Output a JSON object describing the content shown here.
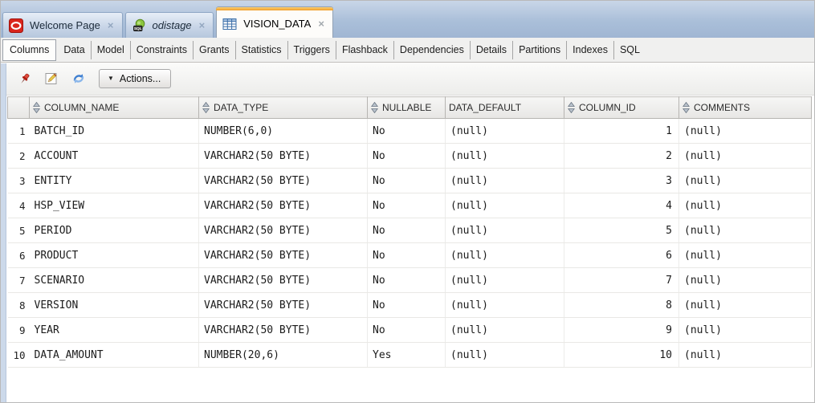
{
  "tabs": [
    {
      "label": "Welcome Page",
      "icon": "oracle-icon",
      "active": false
    },
    {
      "label": "odistage",
      "icon": "sql-worksheet-icon",
      "active": false
    },
    {
      "label": "VISION_DATA",
      "icon": "table-grid-icon",
      "active": true
    }
  ],
  "tab_close_glyph": "×",
  "subtabs": {
    "active": "Columns",
    "items": [
      "Columns",
      "Data",
      "Model",
      "Constraints",
      "Grants",
      "Statistics",
      "Triggers",
      "Flashback",
      "Dependencies",
      "Details",
      "Partitions",
      "Indexes",
      "SQL"
    ]
  },
  "toolbar": {
    "actions_label": "Actions...",
    "caret_glyph": "▼",
    "icons": [
      "pin-icon",
      "edit-icon",
      "refresh-icon"
    ]
  },
  "grid": {
    "columns": [
      {
        "label": "COLUMN_NAME",
        "sortable": true
      },
      {
        "label": "DATA_TYPE",
        "sortable": true
      },
      {
        "label": "NULLABLE",
        "sortable": true
      },
      {
        "label": "DATA_DEFAULT",
        "sortable": false
      },
      {
        "label": "COLUMN_ID",
        "sortable": true
      },
      {
        "label": "COMMENTS",
        "sortable": true
      }
    ],
    "rows": [
      {
        "num": "1",
        "column_name": "BATCH_ID",
        "data_type": "NUMBER(6,0)",
        "nullable": "No",
        "data_default": "(null)",
        "column_id": "1",
        "comments": "(null)"
      },
      {
        "num": "2",
        "column_name": "ACCOUNT",
        "data_type": "VARCHAR2(50 BYTE)",
        "nullable": "No",
        "data_default": "(null)",
        "column_id": "2",
        "comments": "(null)"
      },
      {
        "num": "3",
        "column_name": "ENTITY",
        "data_type": "VARCHAR2(50 BYTE)",
        "nullable": "No",
        "data_default": "(null)",
        "column_id": "3",
        "comments": "(null)"
      },
      {
        "num": "4",
        "column_name": "HSP_VIEW",
        "data_type": "VARCHAR2(50 BYTE)",
        "nullable": "No",
        "data_default": "(null)",
        "column_id": "4",
        "comments": "(null)"
      },
      {
        "num": "5",
        "column_name": "PERIOD",
        "data_type": "VARCHAR2(50 BYTE)",
        "nullable": "No",
        "data_default": "(null)",
        "column_id": "5",
        "comments": "(null)"
      },
      {
        "num": "6",
        "column_name": "PRODUCT",
        "data_type": "VARCHAR2(50 BYTE)",
        "nullable": "No",
        "data_default": "(null)",
        "column_id": "6",
        "comments": "(null)"
      },
      {
        "num": "7",
        "column_name": "SCENARIO",
        "data_type": "VARCHAR2(50 BYTE)",
        "nullable": "No",
        "data_default": "(null)",
        "column_id": "7",
        "comments": "(null)"
      },
      {
        "num": "8",
        "column_name": "VERSION",
        "data_type": "VARCHAR2(50 BYTE)",
        "nullable": "No",
        "data_default": "(null)",
        "column_id": "8",
        "comments": "(null)"
      },
      {
        "num": "9",
        "column_name": "YEAR",
        "data_type": "VARCHAR2(50 BYTE)",
        "nullable": "No",
        "data_default": "(null)",
        "column_id": "9",
        "comments": "(null)"
      },
      {
        "num": "10",
        "column_name": "DATA_AMOUNT",
        "data_type": "NUMBER(20,6)",
        "nullable": "Yes",
        "data_default": "(null)",
        "column_id": "10",
        "comments": "(null)"
      }
    ]
  },
  "colors": {
    "accent_orange": "#ef9d28",
    "tabstrip_blue": "#a6bad5",
    "refresh_blue": "#3f7fd0",
    "pin_red": "#c1231a"
  }
}
